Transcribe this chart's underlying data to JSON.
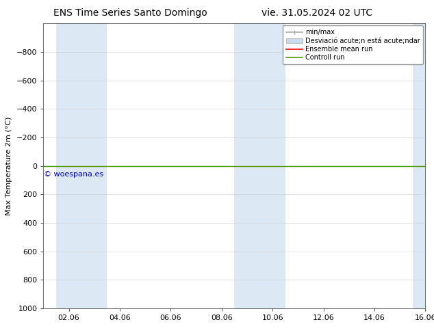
{
  "title_left": "ENS Time Series Santo Domingo",
  "title_right": "vie. 31.05.2024 02 UTC",
  "ylabel": "Max Temperature 2m (°C)",
  "watermark": "© woespana.es",
  "ylim_bottom": 1000,
  "ylim_top": -1000,
  "yticks": [
    -800,
    -600,
    -400,
    -200,
    0,
    200,
    400,
    600,
    800,
    1000
  ],
  "xtick_labels": [
    "02.06",
    "04.06",
    "06.06",
    "08.06",
    "10.06",
    "12.06",
    "14.06",
    "16.06"
  ],
  "xtick_positions_days": [
    1,
    3,
    5,
    7,
    9,
    11,
    13,
    15
  ],
  "xlim": [
    0,
    15
  ],
  "blue_band_starts_days": [
    0.5,
    1.5,
    7.5,
    8.5,
    14.5
  ],
  "blue_band_ends_days": [
    1.5,
    2.5,
    8.5,
    9.5,
    15.5
  ],
  "horizontal_line_y": 0,
  "line_color_green": "#4d9900",
  "line_color_red": "#FF0000",
  "blue_band_color": "#dce9f5",
  "border_color": "#999999",
  "watermark_color": "#0000BB",
  "legend_minmax_color": "#aaaaaa",
  "legend_std_color": "#c8dcee",
  "background_color": "#FFFFFF",
  "title_fontsize": 10,
  "axis_label_fontsize": 8,
  "tick_fontsize": 8,
  "watermark_fontsize": 8,
  "legend_fontsize": 7,
  "legend_label_minmax": "min/max",
  "legend_label_std": "Desviació acute;n está acute;ndar",
  "legend_label_ensemble": "Ensemble mean run",
  "legend_label_control": "Controll run"
}
